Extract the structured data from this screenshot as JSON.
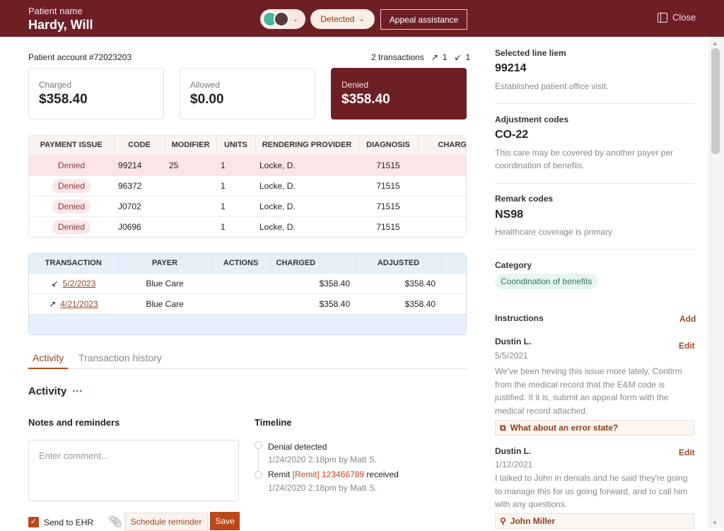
{
  "header": {
    "patient_label": "Patient name",
    "patient_name": "Hardy, Will",
    "status": "Detected",
    "appeal": "Appeal assistance",
    "close": "Close"
  },
  "account": {
    "label": "Patient account #72023203",
    "transactions": "2 transactions",
    "out_count": "1",
    "in_count": "1"
  },
  "summary": [
    {
      "label": "Charged",
      "value": "$358.40"
    },
    {
      "label": "Allowed",
      "value": "$0.00"
    },
    {
      "label": "Denied",
      "value": "$358.40"
    }
  ],
  "line_items": {
    "headers": [
      "PAYMENT ISSUE",
      "CODE",
      "MODIFIER",
      "UNITS",
      "RENDERING PROVIDER",
      "DIAGNOSIS",
      "CHARGES"
    ],
    "rows": [
      {
        "issue": "Denied",
        "code": "99214",
        "modifier": "25",
        "units": "1",
        "provider": "Locke, D.",
        "diagnosis": "71515"
      },
      {
        "issue": "Denied",
        "code": "96372",
        "modifier": "",
        "units": "1",
        "provider": "Locke, D.",
        "diagnosis": "71515"
      },
      {
        "issue": "Denied",
        "code": "J0702",
        "modifier": "",
        "units": "1",
        "provider": "Locke, D.",
        "diagnosis": "71515"
      },
      {
        "issue": "Denied",
        "code": "J0696",
        "modifier": "",
        "units": "1",
        "provider": "Locke, D.",
        "diagnosis": "71515"
      }
    ]
  },
  "transactions": {
    "headers": [
      "TRANSACTION",
      "PAYER",
      "ACTIONS",
      "CHARGED",
      "ADJUSTED"
    ],
    "rows": [
      {
        "dir": "↙",
        "date": "5/2/2023",
        "payer": "Blue Care",
        "charged": "$358.40",
        "adjusted": "$358.40"
      },
      {
        "dir": "↗",
        "date": "4/21/2023",
        "payer": "Blue Care",
        "charged": "$358.40",
        "adjusted": "$358.40"
      }
    ]
  },
  "tabs": [
    "Activity",
    "Transaction history"
  ],
  "activity": {
    "title": "Activity",
    "more": "···",
    "notes_title": "Notes and reminders",
    "comment_placeholder": "Enter comment...",
    "send_ehr": "Send to EHR",
    "schedule": "Schedule reminder",
    "save": "Save",
    "timeline_title": "Timeline",
    "timeline": [
      {
        "pre": "Denial detected",
        "link": "",
        "post": "",
        "meta": "1/24/2020 2:18pm by Matt S."
      },
      {
        "pre": "Remit ",
        "link": "[Remit] 123466789",
        "post": " received",
        "meta": "1/24/2020 2:18pm by Matt S."
      }
    ]
  },
  "detail": {
    "selected_label": "Selected line liem",
    "selected_code": "99214",
    "selected_desc": "Established patient office visit.",
    "adj_label": "Adjustment codes",
    "adj_code": "CO-22",
    "adj_desc": "This care may be covered by another payer per coordination of benefiis.",
    "remark_label": "Remark codes",
    "remark_code": "NS98",
    "remark_desc": "Healthcare coverage is primary",
    "category_label": "Category",
    "category": "Coondination of benefits",
    "instructions_label": "Instructions",
    "add": "Add",
    "instructions": [
      {
        "author": "Dustin L.",
        "date": "5/5/2021",
        "edit": "Edit",
        "text": "We've been heving this issue more lately, Contirm from the medical record that the E&M code is justified. It it is, submit an appeal form with the medical record attached.",
        "callout": "What about an error state?"
      },
      {
        "author": "Dustin L.",
        "date": "1/12/2021",
        "edit": "Edit",
        "text": "I talked to John in denials and he said they're going to manage this for us going forward, and to call him with any questions.",
        "callout": "John Miller"
      }
    ]
  },
  "colors": {
    "brand": "#6e1f26",
    "accent": "#b9481a",
    "denied_bg": "#fbe7e7",
    "category_bg": "#e6f5ef"
  }
}
